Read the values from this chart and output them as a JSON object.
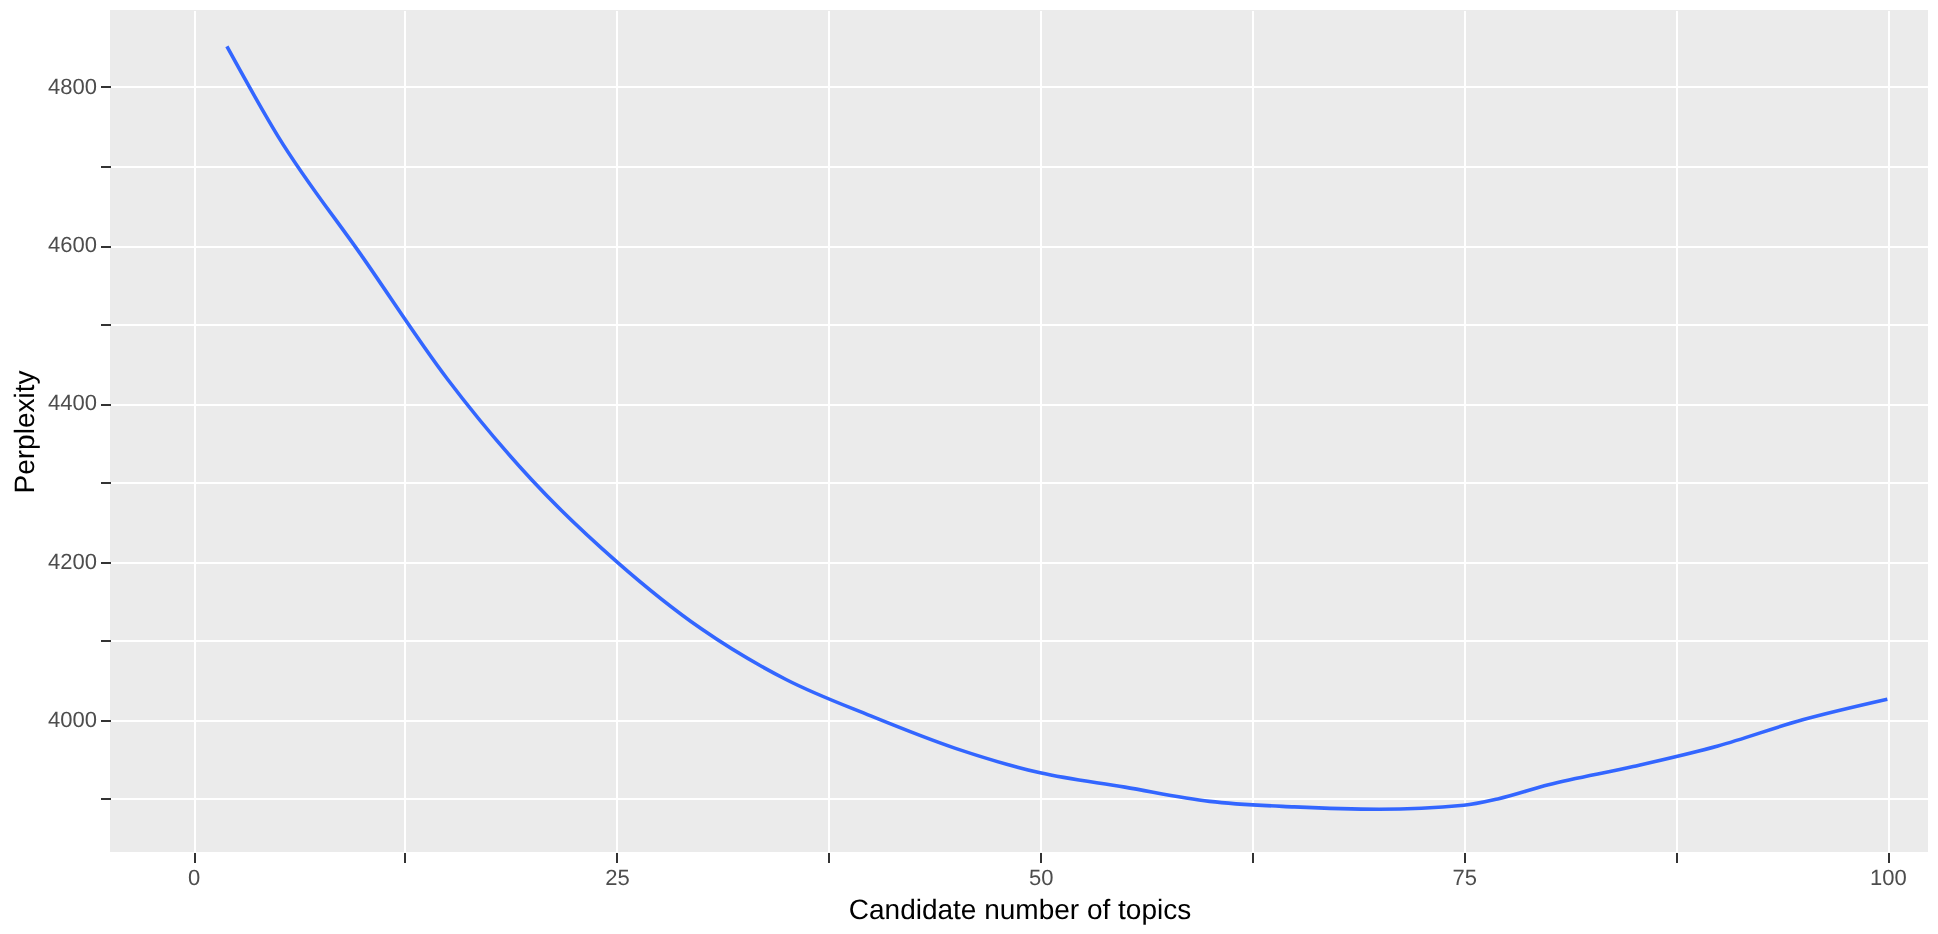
{
  "chart_data": {
    "type": "line",
    "xlabel": "Candidate number of topics",
    "ylabel": "Perplexity",
    "x": [
      2,
      5,
      10,
      15,
      20,
      25,
      30,
      35,
      40,
      45,
      50,
      55,
      60,
      65,
      70,
      75,
      77,
      80,
      85,
      90,
      95,
      100
    ],
    "series": [
      {
        "color": "#3366ff",
        "values": [
          4851,
          4738,
          4585,
          4431,
          4303,
          4200,
          4115,
          4051,
          4005,
          3964,
          3933,
          3915,
          3897,
          3890,
          3887,
          3892,
          3900,
          3918,
          3941,
          3967,
          4000,
          4026
        ]
      }
    ],
    "xlim": [
      -4.9,
      102.4
    ],
    "ylim": [
      3833,
      4897
    ],
    "xticks": [
      0,
      {
        "value": 12.5,
        "label": null
      },
      25,
      {
        "value": 37.5,
        "label": null
      },
      50,
      {
        "value": 62.5,
        "label": null
      },
      75,
      {
        "value": 87.5,
        "label": null
      },
      100
    ],
    "yticks": [
      {
        "value": 3900,
        "label": null
      },
      4000,
      {
        "value": 4100,
        "label": null
      },
      4200,
      {
        "value": 4300,
        "label": null
      },
      4400,
      {
        "value": 4500,
        "label": null
      },
      4600,
      {
        "value": 4700,
        "label": null
      },
      4800
    ],
    "grid": true,
    "marker": "none",
    "line_style": "solid"
  }
}
